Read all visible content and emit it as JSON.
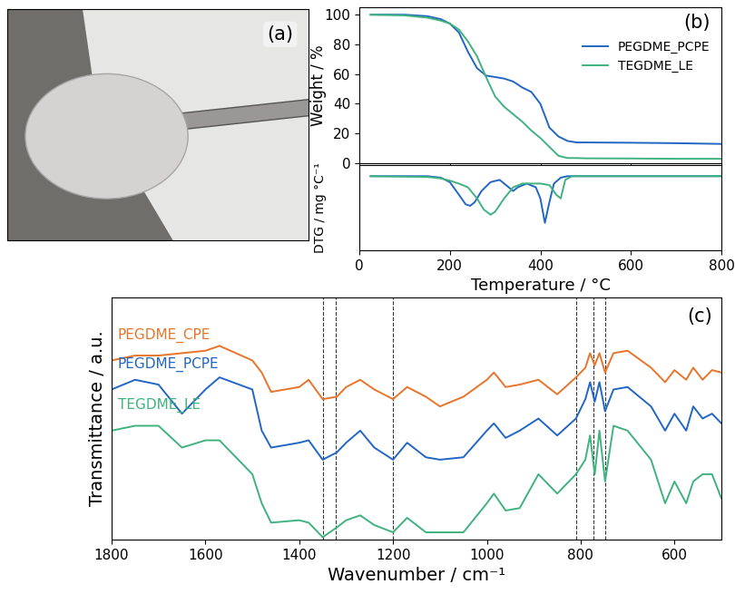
{
  "chart_data": [
    {
      "type": "image",
      "panel_label": "(a)"
    },
    {
      "type": "line",
      "panel_label": "(b)",
      "ylabel": "Weight / %",
      "xlim": [
        0,
        800
      ],
      "xticks": [
        0,
        200,
        400,
        600,
        800
      ],
      "ylim": [
        0,
        105
      ],
      "yticks": [
        0,
        20,
        40,
        60,
        80,
        100
      ],
      "tick_labels": "y",
      "legend": "upper right",
      "series": [
        {
          "name": "PEGDME_PCPE",
          "color": "#2166c4",
          "x": [
            25,
            100,
            150,
            180,
            200,
            220,
            240,
            260,
            280,
            300,
            320,
            340,
            360,
            380,
            400,
            420,
            440,
            460,
            480,
            500,
            600,
            700,
            800
          ],
          "values": [
            100,
            100,
            99,
            97,
            94,
            88,
            75,
            64,
            59,
            58,
            57,
            55,
            51,
            48,
            40,
            24,
            18,
            15,
            14,
            14,
            13.8,
            13.5,
            13
          ]
        },
        {
          "name": "TEGDME_LE",
          "color": "#3fb27f",
          "x": [
            25,
            100,
            150,
            180,
            200,
            220,
            240,
            260,
            280,
            300,
            320,
            340,
            360,
            380,
            400,
            420,
            440,
            460,
            480,
            500,
            600,
            700,
            800
          ],
          "values": [
            100,
            99.5,
            98,
            96,
            94,
            90,
            82,
            72,
            58,
            45,
            38,
            33,
            28,
            22,
            17,
            11,
            5,
            3.5,
            3.5,
            3.3,
            3.2,
            3,
            3
          ]
        }
      ]
    },
    {
      "type": "line",
      "xlabel": "Temperature / °C",
      "ylabel": "DTG / mg °C⁻¹",
      "xlim": [
        0,
        800
      ],
      "xticks": [
        0,
        200,
        400,
        600,
        800
      ],
      "ylim": [
        -1.0,
        0.15
      ],
      "tick_labels": "x",
      "series": [
        {
          "name": "PEGDME_PCPE",
          "color": "#2166c4",
          "x": [
            25,
            150,
            180,
            200,
            220,
            235,
            245,
            255,
            270,
            290,
            310,
            330,
            340,
            350,
            370,
            390,
            400,
            410,
            420,
            430,
            445,
            460,
            500,
            800
          ],
          "values": [
            0,
            0,
            -0.02,
            -0.08,
            -0.25,
            -0.38,
            -0.4,
            -0.35,
            -0.2,
            -0.08,
            -0.05,
            -0.15,
            -0.2,
            -0.15,
            -0.1,
            -0.15,
            -0.3,
            -0.63,
            -0.35,
            -0.1,
            -0.02,
            0,
            0,
            0
          ]
        },
        {
          "name": "TEGDME_LE",
          "color": "#3fb27f",
          "x": [
            25,
            150,
            180,
            200,
            220,
            240,
            260,
            275,
            290,
            300,
            320,
            340,
            360,
            380,
            400,
            420,
            435,
            445,
            455,
            470,
            800
          ],
          "values": [
            0,
            -0.01,
            -0.03,
            -0.06,
            -0.1,
            -0.15,
            -0.3,
            -0.45,
            -0.52,
            -0.48,
            -0.3,
            -0.15,
            -0.1,
            -0.1,
            -0.1,
            -0.12,
            -0.25,
            -0.3,
            -0.05,
            0,
            0
          ]
        }
      ]
    },
    {
      "type": "line",
      "panel_label": "(c)",
      "xlabel": "Wavenumber / cm⁻¹",
      "ylabel": "Transmittance / a.u.",
      "xlim": [
        1800,
        500
      ],
      "xticks": [
        1800,
        1600,
        1400,
        1200,
        1000,
        800,
        600
      ],
      "ylim": [
        0,
        100
      ],
      "tick_labels": "x",
      "vlines": [
        1350,
        1322,
        1200,
        810,
        773,
        748
      ],
      "x": [
        1800,
        1750,
        1700,
        1650,
        1600,
        1570,
        1500,
        1480,
        1460,
        1400,
        1380,
        1350,
        1320,
        1300,
        1270,
        1240,
        1200,
        1170,
        1130,
        1100,
        1050,
        1000,
        985,
        960,
        930,
        890,
        850,
        810,
        790,
        780,
        770,
        760,
        748,
        730,
        700,
        650,
        620,
        600,
        575,
        560,
        540,
        520,
        500
      ],
      "series": [
        {
          "name": "PEGDME_CPE",
          "color": "#e8742a",
          "values": [
            74,
            76,
            76,
            77,
            78,
            80,
            74,
            69,
            61,
            63,
            66,
            58,
            59,
            63,
            66,
            62,
            58,
            63,
            59,
            55,
            59,
            66,
            69,
            63,
            64,
            66,
            60,
            67,
            71,
            77,
            72,
            77,
            69,
            77,
            78,
            71,
            65,
            70,
            66,
            71,
            66,
            70,
            69
          ]
        },
        {
          "name": "PEGDME_PCPE",
          "color": "#2166c4",
          "values": [
            62,
            66,
            64,
            52,
            62,
            67,
            62,
            45,
            38,
            40,
            41,
            33,
            36,
            40,
            45,
            38,
            33,
            40,
            34,
            33,
            34,
            45,
            48,
            42,
            45,
            50,
            43,
            50,
            58,
            65,
            57,
            65,
            53,
            62,
            63,
            55,
            45,
            52,
            45,
            55,
            50,
            52,
            48
          ]
        },
        {
          "name": "TEGDME_LE",
          "color": "#3fb27f",
          "values": [
            45,
            47,
            47,
            38,
            41,
            41,
            27,
            15,
            7,
            8,
            7,
            1,
            5,
            8,
            10,
            6,
            3,
            9,
            3,
            3,
            3,
            15,
            19,
            12,
            13,
            27,
            19,
            27,
            33,
            43,
            27,
            45,
            24,
            47,
            45,
            33,
            15,
            24,
            15,
            24,
            27,
            27,
            17
          ]
        }
      ]
    }
  ]
}
